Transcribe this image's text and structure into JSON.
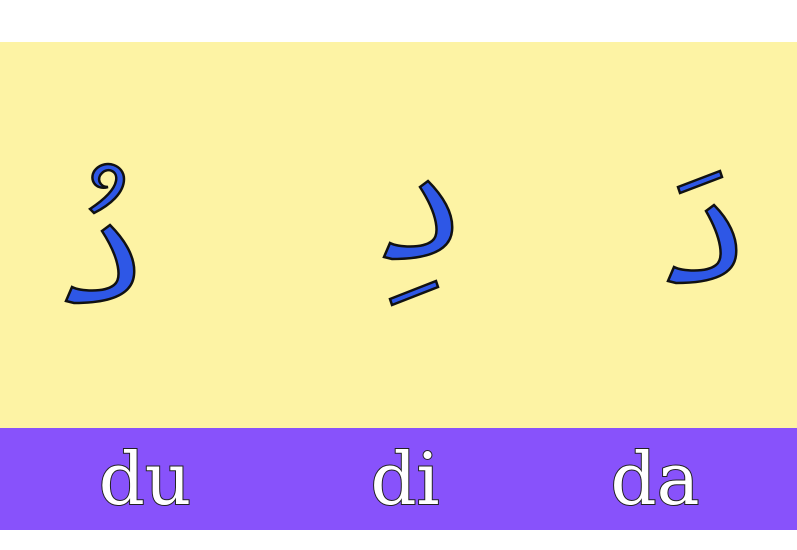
{
  "colors": {
    "panel_background": "#fdf3a4",
    "label_bar_background": "#8852fb",
    "letter_fill": "#2e57e6",
    "outline": "#111111",
    "label_text": "#ffffff"
  },
  "letters": [
    {
      "glyph": "دُ",
      "name": "dal-damma",
      "transliteration": "du"
    },
    {
      "glyph": "دِ",
      "name": "dal-kasra",
      "transliteration": "di"
    },
    {
      "glyph": "دَ",
      "name": "dal-fatha",
      "transliteration": "da"
    }
  ]
}
